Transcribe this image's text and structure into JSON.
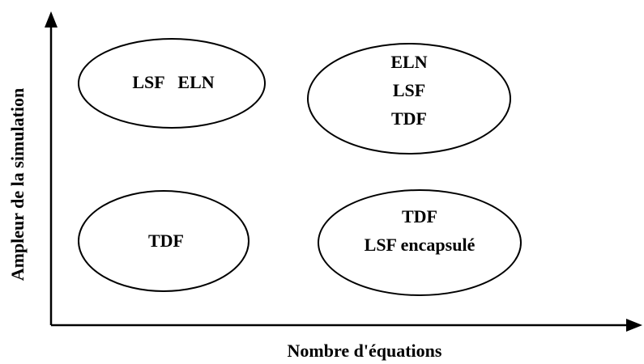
{
  "axes": {
    "y_label": "Ampleur de la simulation",
    "x_label": "Nombre d'équations"
  },
  "nodes": [
    {
      "lines": [
        "LSF   ELN"
      ]
    },
    {
      "lines": [
        "ELN",
        "LSF",
        "TDF"
      ]
    },
    {
      "lines": [
        "TDF"
      ]
    },
    {
      "lines": [
        "TDF",
        "LSF encapsulé"
      ]
    }
  ]
}
